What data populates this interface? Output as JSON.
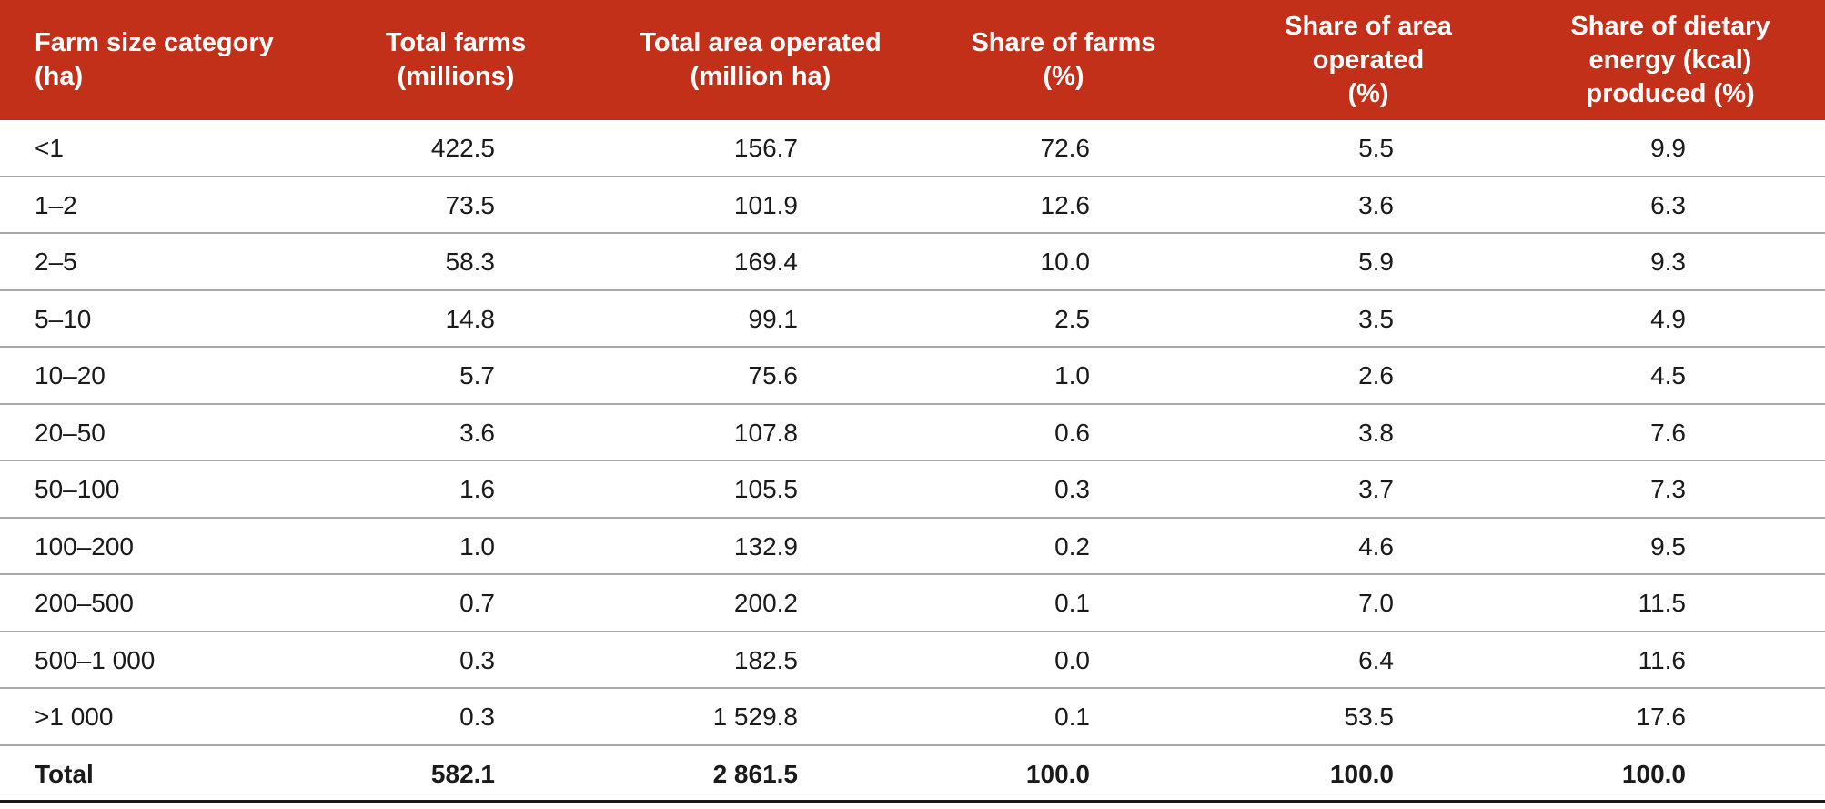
{
  "table": {
    "header": [
      [
        "Farm size category",
        "(ha)"
      ],
      [
        "Total farms",
        "(millions)"
      ],
      [
        "Total area operated",
        "(million ha)"
      ],
      [
        "Share of farms",
        "(%)"
      ],
      [
        "Share of area",
        "operated",
        "(%)"
      ],
      [
        "Share of dietary",
        "energy (kcal)",
        "produced (%)"
      ]
    ],
    "rows": [
      [
        "<1",
        "422.5",
        "156.7",
        "72.6",
        "5.5",
        "9.9"
      ],
      [
        "1–2",
        "73.5",
        "101.9",
        "12.6",
        "3.6",
        "6.3"
      ],
      [
        "2–5",
        "58.3",
        "169.4",
        "10.0",
        "5.9",
        "9.3"
      ],
      [
        "5–10",
        "14.8",
        "99.1",
        "2.5",
        "3.5",
        "4.9"
      ],
      [
        "10–20",
        "5.7",
        "75.6",
        "1.0",
        "2.6",
        "4.5"
      ],
      [
        "20–50",
        "3.6",
        "107.8",
        "0.6",
        "3.8",
        "7.6"
      ],
      [
        "50–100",
        "1.6",
        "105.5",
        "0.3",
        "3.7",
        "7.3"
      ],
      [
        "100–200",
        "1.0",
        "132.9",
        "0.2",
        "4.6",
        "9.5"
      ],
      [
        "200–500",
        "0.7",
        "200.2",
        "0.1",
        "7.0",
        "11.5"
      ],
      [
        "500–1 000",
        "0.3",
        "182.5",
        "0.0",
        "6.4",
        "11.6"
      ],
      [
        ">1 000",
        "0.3",
        "1 529.8",
        "0.1",
        "53.5",
        "17.6"
      ]
    ],
    "total": [
      "Total",
      "582.1",
      "2 861.5",
      "100.0",
      "100.0",
      "100.0"
    ]
  }
}
